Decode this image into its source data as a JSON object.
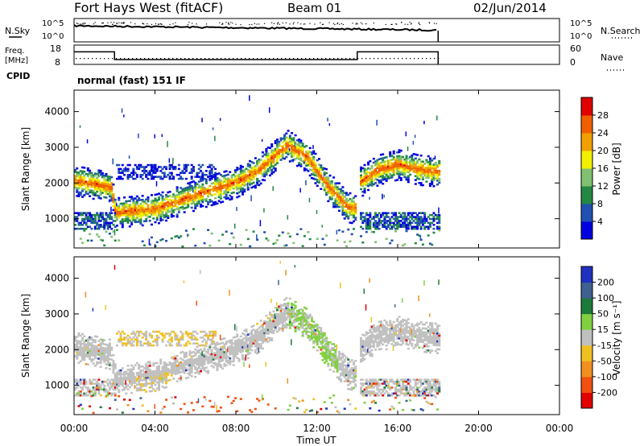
{
  "header": {
    "station": "Fort Hays West (fitACF)",
    "beam": "Beam 01",
    "date": "02/Jun/2014"
  },
  "labels": {
    "nsky": "N.Sky",
    "nsearch": "N.Search",
    "freq_line1": "Freq.",
    "freq_line2": "[MHz]",
    "nave": "Nave",
    "cpid": "CPID",
    "cpid_value": "normal (fast) 151 IF",
    "slant_range": "Slant Range [km]",
    "time_axis": "Time UT",
    "power_label": "Power [dB]",
    "velocity_label": "Velocity [m s⁻¹]"
  },
  "noise_ticks": {
    "left_top": "10^5",
    "left_bottom": "10^0",
    "right_top": "10^5",
    "right_bottom": "10^0"
  },
  "freq_ticks": {
    "left": [
      "18",
      "8"
    ],
    "right": [
      "60",
      "0"
    ]
  },
  "time_ticks": [
    "00:00",
    "04:00",
    "08:00",
    "12:00",
    "16:00",
    "20:00",
    "00:00"
  ],
  "range_ticks": [
    "1000",
    "2000",
    "3000",
    "4000"
  ],
  "power_scale": {
    "ticks": [
      "4",
      "8",
      "12",
      "16",
      "20",
      "24",
      "28"
    ],
    "colors": [
      "#0000e0",
      "#2050b0",
      "#228844",
      "#80c070",
      "#f0f000",
      "#f0a000",
      "#f06000",
      "#e00000"
    ]
  },
  "velocity_scale": {
    "ticks": [
      "200",
      "100",
      "50",
      "15",
      "-15",
      "-50",
      "-100",
      "-200"
    ],
    "colors": [
      "#2030c0",
      "#406090",
      "#1b7a3a",
      "#80d040",
      "#c0c0c0",
      "#f0c020",
      "#f09020",
      "#f05010",
      "#e00000"
    ]
  },
  "chart_data": [
    {
      "type": "line",
      "title": "N.Sky / N.Search",
      "x": [
        0,
        18
      ],
      "series": [
        {
          "name": "N.Sky",
          "values": [
            5,
            4.2
          ]
        }
      ]
    },
    {
      "type": "line",
      "title": "Freq. [MHz] / Nave",
      "series": [
        {
          "name": "Freq. [MHz]",
          "x": [
            0,
            2,
            2,
            14,
            14,
            18
          ],
          "values": [
            14.5,
            14.5,
            10.5,
            10.5,
            14.5,
            14.5
          ]
        },
        {
          "name": "Nave",
          "x": [
            0,
            18
          ],
          "values": [
            10,
            10
          ]
        }
      ]
    },
    {
      "type": "heatmap",
      "title": "Power [dB]",
      "xlabel": "Time UT",
      "ylabel": "Slant Range [km]",
      "xlim": [
        0,
        24
      ],
      "ylim": [
        180,
        4600
      ],
      "bands": [
        {
          "x": [
            0,
            1,
            1.8,
            2,
            4,
            6,
            8,
            9,
            10,
            10.5,
            11.5,
            12.5,
            13.5,
            14,
            14.1,
            15,
            16,
            17,
            18
          ],
          "range": [
            2050,
            1950,
            1850,
            1150,
            1250,
            1650,
            2000,
            2300,
            2800,
            3050,
            2700,
            1900,
            1300,
            1250,
            2000,
            2350,
            2500,
            2350,
            2300
          ]
        }
      ]
    },
    {
      "type": "heatmap",
      "title": "Velocity [m s⁻¹]",
      "xlabel": "Time UT",
      "ylabel": "Slant Range [km]",
      "xlim": [
        0,
        24
      ],
      "ylim": [
        180,
        4600
      ],
      "bands": [
        {
          "x": [
            0,
            1,
            1.8,
            2,
            4,
            6,
            8,
            9,
            10,
            10.5,
            11.5,
            12.5,
            13.5,
            14,
            14.1,
            15,
            16,
            17,
            18
          ],
          "range": [
            2050,
            1950,
            1850,
            1150,
            1250,
            1650,
            2000,
            2300,
            2800,
            3050,
            2700,
            1900,
            1300,
            1250,
            2000,
            2350,
            2500,
            2350,
            2300
          ]
        }
      ]
    }
  ]
}
